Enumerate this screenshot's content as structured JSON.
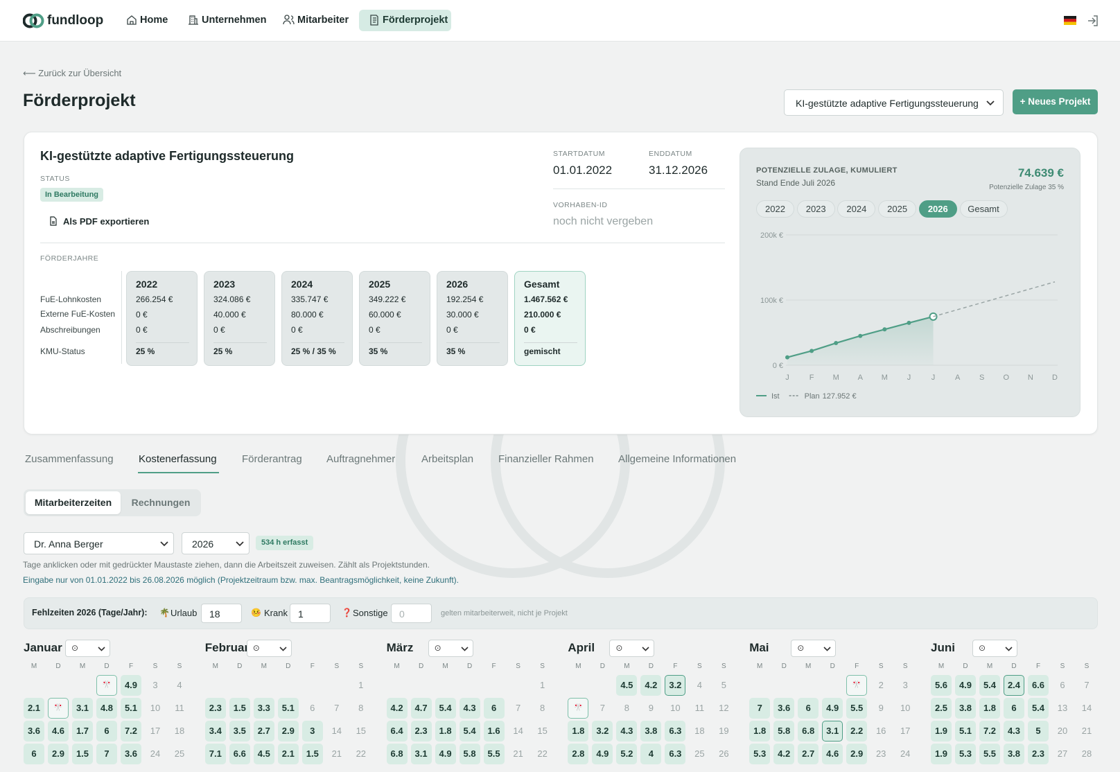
{
  "nav": {
    "brand": "fundloop",
    "items": [
      "Home",
      "Unternehmen",
      "Mitarbeiter",
      "Förderprojekt"
    ],
    "active": 3
  },
  "back": "⟵ Zurück zur Übersicht",
  "page_title": "Förderprojekt",
  "project_select": "KI-gestützte adaptive Fertigungssteuerung",
  "new_project": "+ Neues Projekt",
  "project": {
    "name": "KI-gestützte adaptive Fertigungssteuerung",
    "status_label": "STATUS",
    "status": "In Bearbeitung",
    "export": "Als PDF exportieren",
    "start_label": "STARTDATUM",
    "start": "01.01.2022",
    "end_label": "ENDDATUM",
    "end": "31.12.2026",
    "id_label": "VORHABEN-ID",
    "id": "noch nicht vergeben"
  },
  "funding_years": {
    "label": "FÖRDERJAHRE",
    "row_labels": [
      "FuE-Lohnkosten",
      "Externe FuE-Kosten",
      "Abschreibungen",
      "KMU-Status"
    ],
    "columns": [
      {
        "year": "2022",
        "rows": [
          "266.254 €",
          "0 €",
          "0 €"
        ],
        "kmu": "25 %"
      },
      {
        "year": "2023",
        "rows": [
          "324.086 €",
          "40.000 €",
          "0 €"
        ],
        "kmu": "25 %"
      },
      {
        "year": "2024",
        "rows": [
          "335.747 €",
          "80.000 €",
          "0 €"
        ],
        "kmu": "25 % / 35 %"
      },
      {
        "year": "2025",
        "rows": [
          "349.222 €",
          "60.000 €",
          "0 €"
        ],
        "kmu": "35 %"
      },
      {
        "year": "2026",
        "rows": [
          "192.254 €",
          "30.000 €",
          "0 €"
        ],
        "kmu": "35 %"
      },
      {
        "year": "Gesamt",
        "rows": [
          "1.467.562 €",
          "210.000 €",
          "0 €"
        ],
        "kmu": "gemischt",
        "total": true
      }
    ]
  },
  "chart_data": {
    "type": "line",
    "title": "POTENZIELLE ZULAGE, KUMULIERT",
    "subtitle": "Stand Ende Juli 2026",
    "total": "74.639 €",
    "total_note": "Potenzielle Zulage 35 %",
    "year_tabs": [
      "2022",
      "2023",
      "2024",
      "2025",
      "2026",
      "Gesamt"
    ],
    "active_year": 4,
    "categories": [
      "J",
      "F",
      "M",
      "A",
      "M",
      "J",
      "J",
      "A",
      "S",
      "O",
      "N",
      "D"
    ],
    "series": [
      {
        "name": "Ist",
        "color": "#4f9e86",
        "values": [
          12100,
          22000,
          34000,
          45000,
          55000,
          65000,
          74639,
          null,
          null,
          null,
          null,
          null
        ]
      },
      {
        "name": "Plan",
        "color": "#9aa5a5",
        "dashed": true,
        "values": [
          null,
          null,
          null,
          null,
          null,
          null,
          74639,
          85302,
          95965,
          106627,
          117290,
          127952
        ]
      }
    ],
    "plan_total": "127.952 €",
    "ylim": [
      0,
      200000
    ],
    "yticks": [
      {
        "value": 0,
        "label": "0 €"
      },
      {
        "value": 100000,
        "label": "100k €"
      },
      {
        "value": 200000,
        "label": "200k €"
      }
    ],
    "grid": true
  },
  "tabs": {
    "items": [
      "Zusammenfassung",
      "Kostenerfassung",
      "Förderantrag",
      "Auftragnehmer",
      "Arbeitsplan",
      "Finanzieller Rahmen",
      "Allgemeine Informationen"
    ],
    "active": 1
  },
  "subtabs": {
    "items": [
      "Mitarbeiterzeiten",
      "Rechnungen"
    ],
    "active": 0
  },
  "employee": "Dr. Anna Berger",
  "year": "2026",
  "hours_badge": "534 h erfasst",
  "hints": [
    "Tage anklicken oder mit gedrückter Maustaste ziehen, dann die Arbeitszeit zuweisen. Zählt als Projektstunden.",
    "Eingabe nur von 01.01.2022 bis 26.08.2026 möglich (Projektzeitraum bzw. max. Beantragsmöglichkeit, keine Zukunft)."
  ],
  "absences": {
    "label": "Fehlzeiten 2026 (Tage/Jahr):",
    "items": [
      {
        "icon": "🌴",
        "name": "Urlaub",
        "value": "18"
      },
      {
        "icon": "🤒",
        "name": "Krank",
        "value": "1"
      },
      {
        "icon": "❓",
        "name": "Sonstige",
        "placeholder": "0"
      }
    ],
    "note": "gelten mitarbeiterweit, nicht je Projekt"
  },
  "calendar": {
    "weekdays": [
      "M",
      "D",
      "M",
      "D",
      "F",
      "S",
      "S"
    ],
    "select_icon": "⊙",
    "months": [
      {
        "name": "Januar",
        "weeks": [
          [
            null,
            null,
            null,
            {
              "icon": "🎌",
              "holiday": true
            },
            4.9,
            "3",
            "4"
          ],
          [
            2.1,
            {
              "icon": "🎌",
              "holiday": true
            },
            3.1,
            4.8,
            5.1,
            "10",
            "11"
          ],
          [
            3.6,
            4.6,
            1.7,
            6,
            7.2,
            "17",
            "18"
          ],
          [
            6,
            2.9,
            1.5,
            7,
            3.6,
            "24",
            "25"
          ]
        ]
      },
      {
        "name": "Februar",
        "weeks": [
          [
            null,
            null,
            null,
            null,
            null,
            null,
            "1"
          ],
          [
            2.3,
            1.5,
            3.3,
            5.1,
            "6",
            "7",
            "8"
          ],
          [
            3.4,
            3.5,
            2.7,
            2.9,
            3,
            "14",
            "15"
          ],
          [
            7.1,
            6.6,
            4.5,
            2.1,
            1.5,
            "21",
            "22"
          ]
        ]
      },
      {
        "name": "März",
        "weeks": [
          [
            null,
            null,
            null,
            null,
            null,
            null,
            "1"
          ],
          [
            4.2,
            4.7,
            5.4,
            4.3,
            6,
            "7",
            "8"
          ],
          [
            6.4,
            2.3,
            1.8,
            5.4,
            1.6,
            "14",
            "15"
          ],
          [
            6.8,
            3.1,
            4.9,
            5.8,
            5.5,
            "21",
            "22"
          ]
        ]
      },
      {
        "name": "April",
        "weeks": [
          [
            null,
            null,
            4.5,
            4.2,
            {
              "hours": 3.2,
              "holiday": true
            },
            "4",
            "5"
          ],
          [
            {
              "icon": "🎌",
              "holiday": true
            },
            "7",
            "8",
            "9",
            "10",
            "11",
            "12"
          ],
          [
            1.8,
            3.2,
            4.3,
            3.8,
            6.3,
            "18",
            "19"
          ],
          [
            2.8,
            4.9,
            5.2,
            4,
            6.3,
            "25",
            "26"
          ]
        ]
      },
      {
        "name": "Mai",
        "weeks": [
          [
            null,
            null,
            null,
            null,
            {
              "icon": "🎌",
              "holiday": true
            },
            "2",
            "3"
          ],
          [
            7,
            3.6,
            6,
            4.9,
            5.5,
            "9",
            "10"
          ],
          [
            1.8,
            5.8,
            6.8,
            {
              "hours": 3.1,
              "holiday": true
            },
            2.2,
            "16",
            "17"
          ],
          [
            5.3,
            4.2,
            2.7,
            4.6,
            2.9,
            "23",
            "24"
          ]
        ]
      },
      {
        "name": "Juni",
        "weeks": [
          [
            5.6,
            4.9,
            5.4,
            {
              "hours": 2.4,
              "holiday": true
            },
            6.6,
            "6",
            "7"
          ],
          [
            2.5,
            3.8,
            1.8,
            6,
            5.4,
            "13",
            "14"
          ],
          [
            1.9,
            5.1,
            7.2,
            4.3,
            5,
            "20",
            "21"
          ],
          [
            1.9,
            5.3,
            5.5,
            3.8,
            2.3,
            "27",
            "28"
          ]
        ]
      }
    ]
  }
}
